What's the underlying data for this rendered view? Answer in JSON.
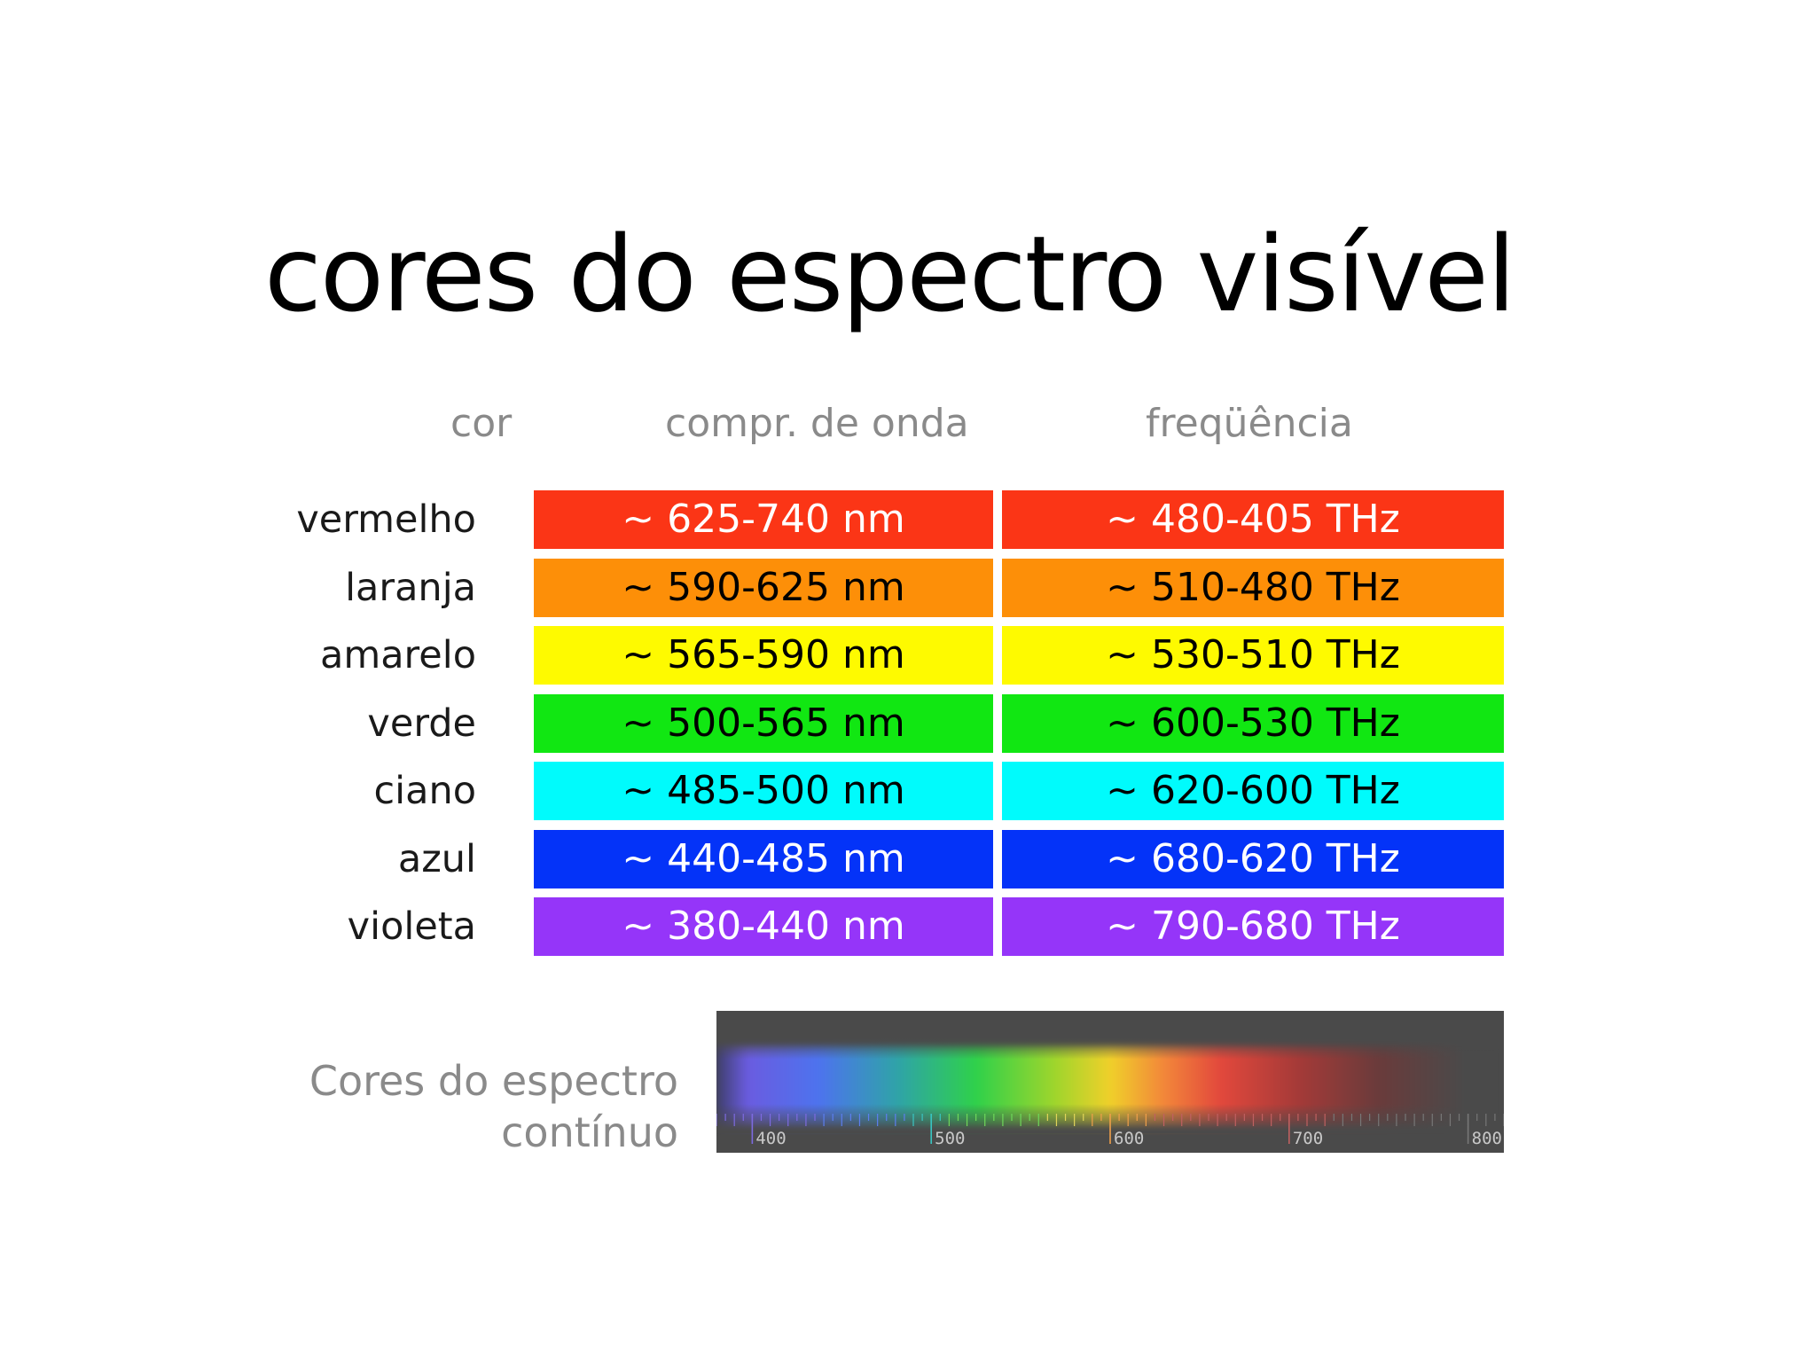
{
  "title": "cores do espectro visível",
  "headers": {
    "color": "cor",
    "wavelength": "compr.  de onda",
    "frequency": "freqüência"
  },
  "rows": [
    {
      "name": "vermelho",
      "wavelength": "~ 625-740 nm",
      "frequency": "~ 480-405 THz",
      "color": "#fb3516",
      "text_color": "#ffffff"
    },
    {
      "name": "laranja",
      "wavelength": "~ 590-625 nm",
      "frequency": "~ 510-480 THz",
      "color": "#fd8f08",
      "text_color": "#000000"
    },
    {
      "name": "amarelo",
      "wavelength": "~ 565-590 nm",
      "frequency": "~ 530-510 THz",
      "color": "#fefa00",
      "text_color": "#000000"
    },
    {
      "name": "verde",
      "wavelength": "~ 500-565 nm",
      "frequency": "~ 600-530 THz",
      "color": "#11e712",
      "text_color": "#000000"
    },
    {
      "name": "ciano",
      "wavelength": "~ 485-500 nm",
      "frequency": "~ 620-600 THz",
      "color": "#00fbfc",
      "text_color": "#000000"
    },
    {
      "name": "azul",
      "wavelength": "~ 440-485 nm",
      "frequency": "~ 680-620 THz",
      "color": "#0433f8",
      "text_color": "#ffffff"
    },
    {
      "name": "violeta",
      "wavelength": "~ 380-440 nm",
      "frequency": "~ 790-680 THz",
      "color": "#9535f9",
      "text_color": "#ffffff"
    }
  ],
  "spectrum": {
    "caption_line1": "Cores do espectro",
    "caption_line2": "contínuo",
    "scale_min": 380,
    "scale_max": 820,
    "scale_labels": [
      "400",
      "500",
      "600",
      "700",
      "800"
    ]
  }
}
